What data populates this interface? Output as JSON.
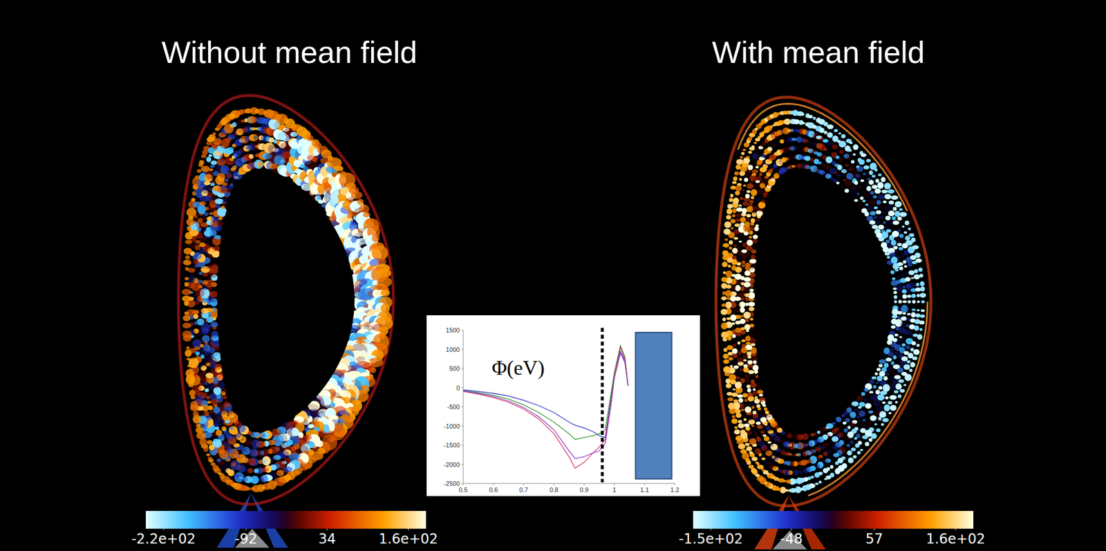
{
  "slide": {
    "panels": [
      {
        "title": "Without mean field",
        "colorbar": {
          "range": [
            -220,
            160
          ],
          "ticks": [
            {
              "value": -220,
              "label": "-2.2e+02"
            },
            -92,
            34,
            {
              "value": 160,
              "label": "1.6e+02"
            }
          ]
        }
      },
      {
        "title": "With mean field",
        "colorbar": {
          "range": [
            -150,
            160
          ],
          "ticks": [
            {
              "value": -150,
              "label": "-1.5e+02"
            },
            -48,
            57,
            {
              "value": 160,
              "label": "1.6e+02"
            }
          ]
        }
      }
    ]
  },
  "chart_data": {
    "type": "line",
    "annotation": "Φ(eV)",
    "x": [
      0.5,
      0.55,
      0.6,
      0.65,
      0.7,
      0.75,
      0.8,
      0.85,
      0.87,
      0.9,
      0.93,
      0.95,
      0.97,
      0.99,
      1.0,
      1.02,
      1.035,
      1.045
    ],
    "series": [
      {
        "color": "#3434c8",
        "values": [
          -60,
          -100,
          -150,
          -220,
          -330,
          -470,
          -650,
          -900,
          -980,
          -1050,
          -1150,
          -1250,
          -1300,
          -200,
          300,
          950,
          700,
          50
        ]
      },
      {
        "color": "#2a9a2a",
        "values": [
          -80,
          -130,
          -200,
          -300,
          -450,
          -650,
          -900,
          -1200,
          -1350,
          -1300,
          -1250,
          -1200,
          -1100,
          -100,
          400,
          1100,
          800,
          50
        ]
      },
      {
        "color": "#d03060",
        "values": [
          -100,
          -170,
          -260,
          -380,
          -560,
          -820,
          -1200,
          -1800,
          -2100,
          -1950,
          -1700,
          -1550,
          -1350,
          -300,
          300,
          1050,
          750,
          50
        ]
      },
      {
        "color": "#9040c0",
        "values": [
          -90,
          -150,
          -230,
          -350,
          -520,
          -760,
          -1100,
          -1650,
          -1850,
          -1800,
          -1700,
          -1650,
          -1450,
          -400,
          250,
          900,
          650,
          50
        ]
      }
    ],
    "xlim": [
      0.5,
      1.2
    ],
    "xticks": [
      0.5,
      0.6,
      0.7,
      0.8,
      0.9,
      1,
      1.1,
      1.2
    ],
    "ylim": [
      -2500,
      1500
    ],
    "yticks": [
      -2500,
      -2000,
      -1500,
      -1000,
      -500,
      0,
      500,
      1000,
      1500
    ],
    "vline": 0.96,
    "wall": [
      1.07,
      1.19
    ]
  }
}
